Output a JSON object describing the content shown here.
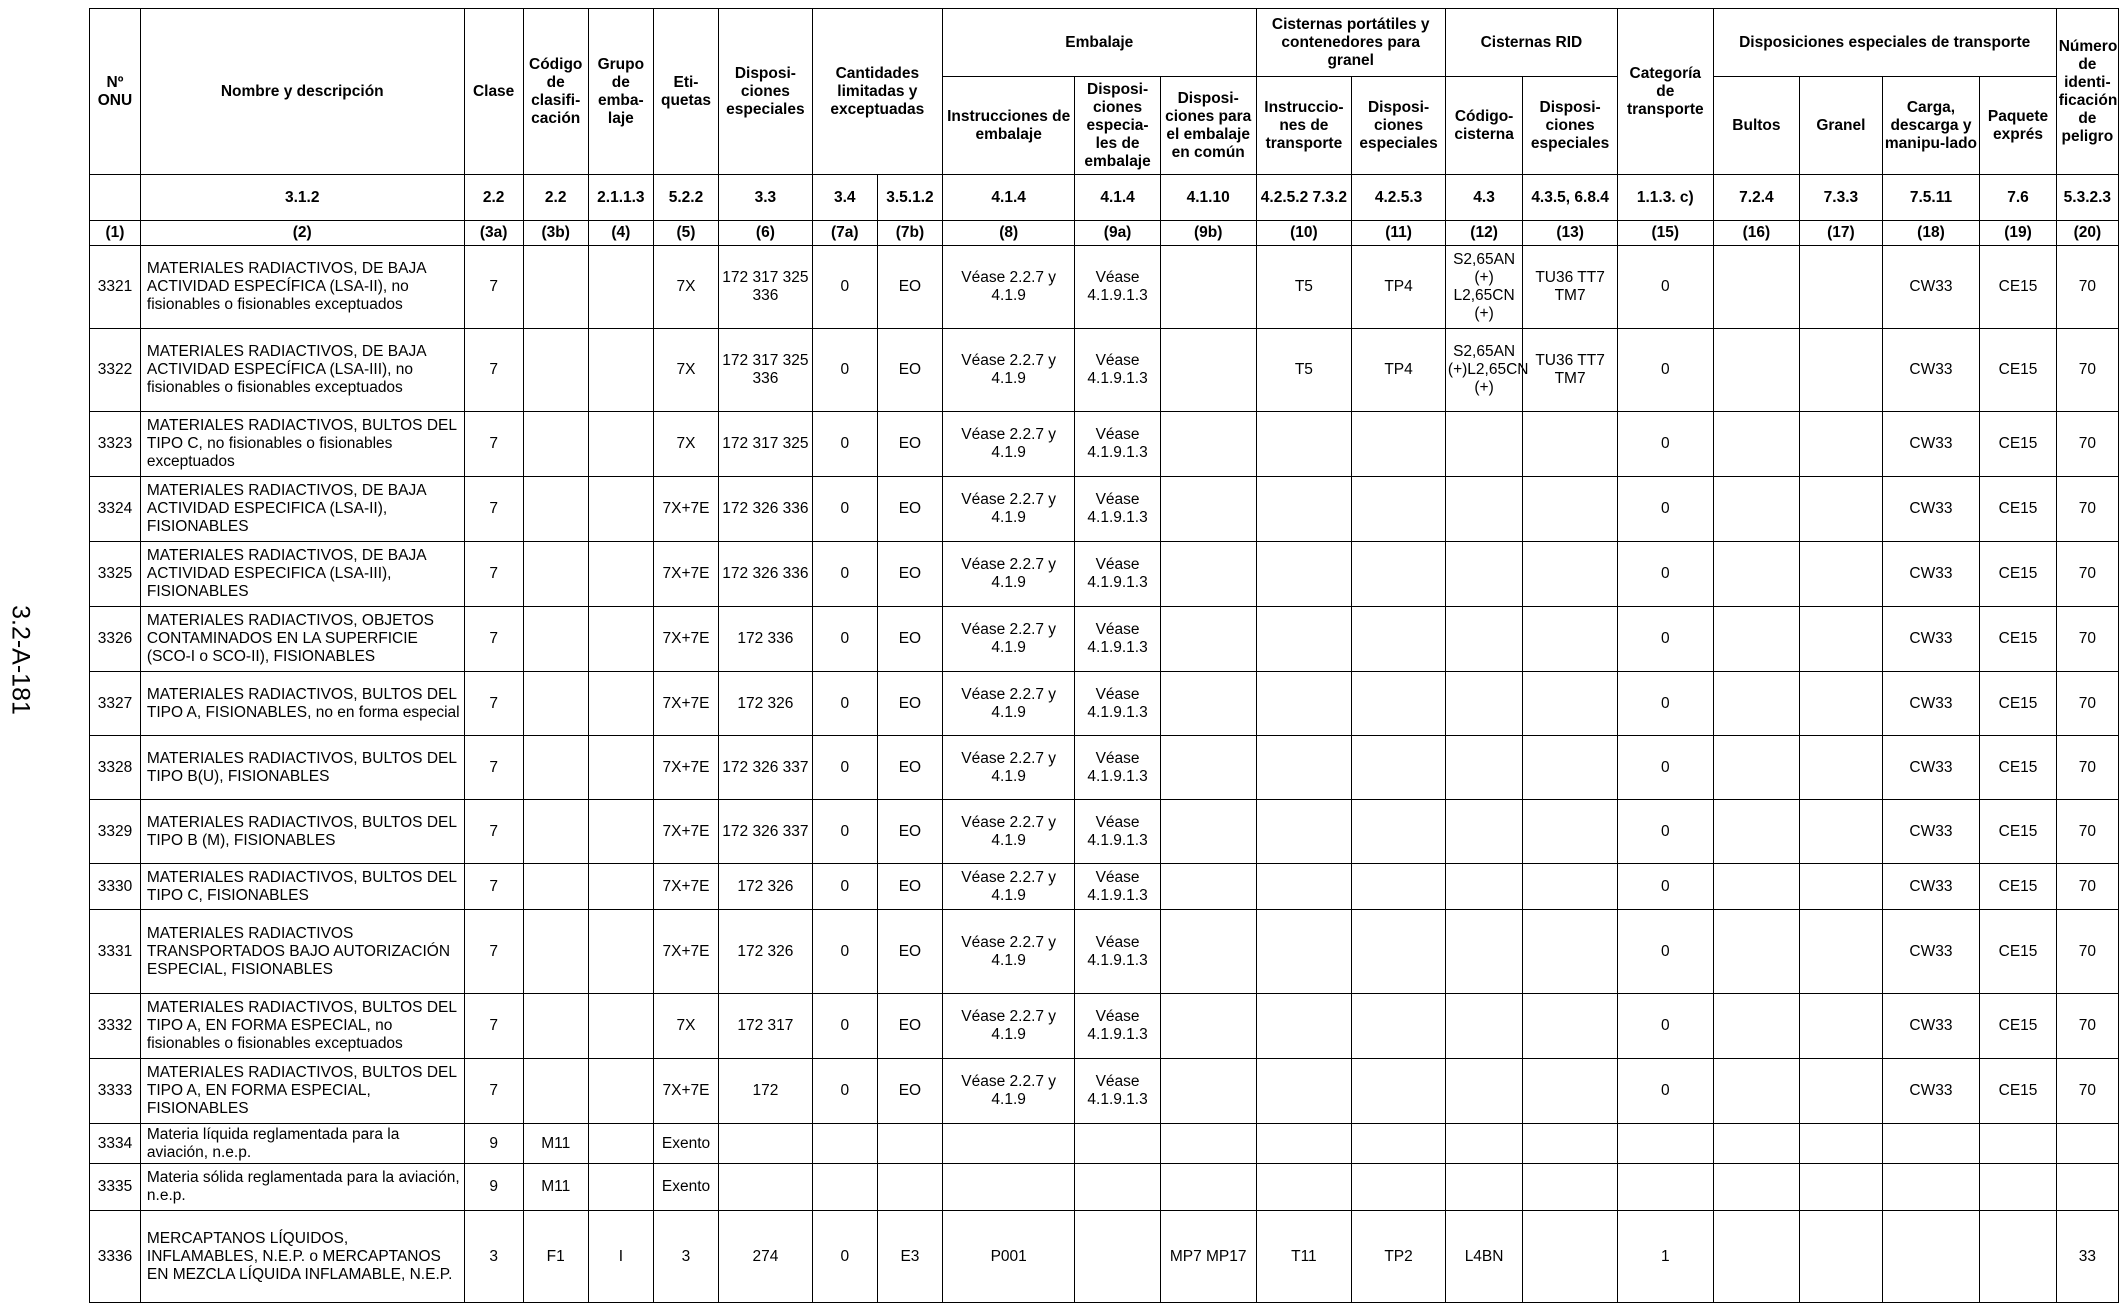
{
  "side_label": "3.2-A-181",
  "groups": {
    "embalaje": "Embalaje",
    "cisternas_portatiles": "Cisternas portátiles y contenedores para granel",
    "cisternas_rid": "Cisternas RID",
    "cantidades": "Cantidades limitadas y exceptuadas",
    "disp_transporte": "Disposiciones especiales de transporte"
  },
  "headers": {
    "onu": "Nº ONU",
    "nombre": "Nombre y descripción",
    "clase": "Clase",
    "codigo": "Código de clasifi-cación",
    "grupo": "Grupo de emba-laje",
    "etiquetas": "Eti-quetas",
    "disp_esp": "Disposi-ciones especiales",
    "instr_emb": "Instrucciones de embalaje",
    "disp_emb": "Disposi-ciones especia-les de embalaje",
    "disp_comun": "Disposi-ciones para el embalaje en común",
    "instr_transp": "Instruccio-nes de transporte",
    "disp_cist": "Disposi-ciones especiales",
    "cod_cisterna": "Código-cisterna",
    "disp_rid": "Disposi-ciones especiales",
    "categoria": "Categoría de transporte",
    "bultos": "Bultos",
    "granel": "Granel",
    "carga": "Carga, descarga y manipu-lado",
    "paquete": "Paquete exprés",
    "numero": "Número de identi-ficación de peligro"
  },
  "references": [
    "",
    "3.1.2",
    "2.2",
    "2.2",
    "2.1.1.3",
    "5.2.2",
    "3.3",
    "3.4",
    "3.5.1.2",
    "4.1.4",
    "4.1.4",
    "4.1.10",
    "4.2.5.2 7.3.2",
    "4.2.5.3",
    "4.3",
    "4.3.5, 6.8.4",
    "1.1.3. c)",
    "7.2.4",
    "7.3.3",
    "7.5.11",
    "7.6",
    "5.3.2.3"
  ],
  "column_numbers": [
    "(1)",
    "(2)",
    "(3a)",
    "(3b)",
    "(4)",
    "(5)",
    "(6)",
    "(7a)",
    "(7b)",
    "(8)",
    "(9a)",
    "(9b)",
    "(10)",
    "(11)",
    "(12)",
    "(13)",
    "(15)",
    "(16)",
    "(17)",
    "(18)",
    "(19)",
    "(20)"
  ],
  "rows": [
    {
      "onu": "3321",
      "nombre": "MATERIALES RADIACTIVOS, DE BAJA ACTIVIDAD ESPECÍFICA (LSA-II), no fisionables o fisionables exceptuados",
      "clase": "7",
      "codigo": "",
      "grupo": "",
      "etiquetas": "7X",
      "disp_esp": "172 317 325 336",
      "cant_lim": "0",
      "cant_exc": "EO",
      "instr_emb": "Véase 2.2.7 y 4.1.9",
      "disp_emb": "Véase 4.1.9.1.3",
      "disp_comun": "",
      "instr_transp": "T5",
      "disp_cist": "TP4",
      "cod_cisterna": "S2,65AN (+) L2,65CN (+)",
      "disp_rid": "TU36 TT7 TM7",
      "categoria": "0",
      "bultos": "",
      "granel": "",
      "carga": "CW33",
      "paquete": "CE15",
      "numero": "70"
    },
    {
      "onu": "3322",
      "nombre": "MATERIALES RADIACTIVOS, DE BAJA ACTIVIDAD ESPECÍFICA (LSA-III), no fisionables o fisionables exceptuados",
      "clase": "7",
      "codigo": "",
      "grupo": "",
      "etiquetas": "7X",
      "disp_esp": "172 317 325 336",
      "cant_lim": "0",
      "cant_exc": "EO",
      "instr_emb": "Véase 2.2.7 y 4.1.9",
      "disp_emb": "Véase 4.1.9.1.3",
      "disp_comun": "",
      "instr_transp": "T5",
      "disp_cist": "TP4",
      "cod_cisterna": "S2,65AN (+)L2,65CN (+)",
      "disp_rid": "TU36 TT7 TM7",
      "categoria": "0",
      "bultos": "",
      "granel": "",
      "carga": "CW33",
      "paquete": "CE15",
      "numero": "70"
    },
    {
      "onu": "3323",
      "nombre": "MATERIALES RADIACTIVOS, BULTOS DEL TIPO C, no fisionables o fisionables exceptuados",
      "clase": "7",
      "codigo": "",
      "grupo": "",
      "etiquetas": "7X",
      "disp_esp": "172 317 325",
      "cant_lim": "0",
      "cant_exc": "EO",
      "instr_emb": "Véase 2.2.7 y 4.1.9",
      "disp_emb": "Véase 4.1.9.1.3",
      "disp_comun": "",
      "instr_transp": "",
      "disp_cist": "",
      "cod_cisterna": "",
      "disp_rid": "",
      "categoria": "0",
      "bultos": "",
      "granel": "",
      "carga": "CW33",
      "paquete": "CE15",
      "numero": "70"
    },
    {
      "onu": "3324",
      "nombre": "MATERIALES RADIACTIVOS, DE BAJA ACTIVIDAD ESPECIFICA (LSA-II), FISIONABLES",
      "clase": "7",
      "codigo": "",
      "grupo": "",
      "etiquetas": "7X+7E",
      "disp_esp": "172 326 336",
      "cant_lim": "0",
      "cant_exc": "EO",
      "instr_emb": "Véase 2.2.7 y 4.1.9",
      "disp_emb": "Véase 4.1.9.1.3",
      "disp_comun": "",
      "instr_transp": "",
      "disp_cist": "",
      "cod_cisterna": "",
      "disp_rid": "",
      "categoria": "0",
      "bultos": "",
      "granel": "",
      "carga": "CW33",
      "paquete": "CE15",
      "numero": "70"
    },
    {
      "onu": "3325",
      "nombre": "MATERIALES RADIACTIVOS, DE BAJA ACTIVIDAD ESPECIFICA (LSA-III), FISIONABLES",
      "clase": "7",
      "codigo": "",
      "grupo": "",
      "etiquetas": "7X+7E",
      "disp_esp": "172 326 336",
      "cant_lim": "0",
      "cant_exc": "EO",
      "instr_emb": "Véase 2.2.7 y 4.1.9",
      "disp_emb": "Véase 4.1.9.1.3",
      "disp_comun": "",
      "instr_transp": "",
      "disp_cist": "",
      "cod_cisterna": "",
      "disp_rid": "",
      "categoria": "0",
      "bultos": "",
      "granel": "",
      "carga": "CW33",
      "paquete": "CE15",
      "numero": "70"
    },
    {
      "onu": "3326",
      "nombre": "MATERIALES RADIACTIVOS, OBJETOS CONTAMINADOS EN LA SUPERFICIE (SCO-I o SCO-II), FISIONABLES",
      "clase": "7",
      "codigo": "",
      "grupo": "",
      "etiquetas": "7X+7E",
      "disp_esp": "172 336",
      "cant_lim": "0",
      "cant_exc": "EO",
      "instr_emb": "Véase 2.2.7 y 4.1.9",
      "disp_emb": "Véase 4.1.9.1.3",
      "disp_comun": "",
      "instr_transp": "",
      "disp_cist": "",
      "cod_cisterna": "",
      "disp_rid": "",
      "categoria": "0",
      "bultos": "",
      "granel": "",
      "carga": "CW33",
      "paquete": "CE15",
      "numero": "70"
    },
    {
      "onu": "3327",
      "nombre": "MATERIALES RADIACTIVOS, BULTOS DEL TIPO A, FISIONABLES,  no en forma especial",
      "clase": "7",
      "codigo": "",
      "grupo": "",
      "etiquetas": "7X+7E",
      "disp_esp": "172 326",
      "cant_lim": "0",
      "cant_exc": "EO",
      "instr_emb": "Véase 2.2.7 y 4.1.9",
      "disp_emb": "Véase 4.1.9.1.3",
      "disp_comun": "",
      "instr_transp": "",
      "disp_cist": "",
      "cod_cisterna": "",
      "disp_rid": "",
      "categoria": "0",
      "bultos": "",
      "granel": "",
      "carga": "CW33",
      "paquete": "CE15",
      "numero": "70"
    },
    {
      "onu": "3328",
      "nombre": "MATERIALES RADIACTIVOS, BULTOS DEL TIPO B(U), FISIONABLES",
      "clase": "7",
      "codigo": "",
      "grupo": "",
      "etiquetas": "7X+7E",
      "disp_esp": "172 326 337",
      "cant_lim": "0",
      "cant_exc": "EO",
      "instr_emb": "Véase 2.2.7 y 4.1.9",
      "disp_emb": "Véase 4.1.9.1.3",
      "disp_comun": "",
      "instr_transp": "",
      "disp_cist": "",
      "cod_cisterna": "",
      "disp_rid": "",
      "categoria": "0",
      "bultos": "",
      "granel": "",
      "carga": "CW33",
      "paquete": "CE15",
      "numero": "70"
    },
    {
      "onu": "3329",
      "nombre": "MATERIALES RADIACTIVOS, BULTOS DEL TIPO B (M), FISIONABLES",
      "clase": "7",
      "codigo": "",
      "grupo": "",
      "etiquetas": "7X+7E",
      "disp_esp": "172 326 337",
      "cant_lim": "0",
      "cant_exc": "EO",
      "instr_emb": "Véase 2.2.7 y 4.1.9",
      "disp_emb": "Véase 4.1.9.1.3",
      "disp_comun": "",
      "instr_transp": "",
      "disp_cist": "",
      "cod_cisterna": "",
      "disp_rid": "",
      "categoria": "0",
      "bultos": "",
      "granel": "",
      "carga": "CW33",
      "paquete": "CE15",
      "numero": "70"
    },
    {
      "onu": "3330",
      "nombre": "MATERIALES RADIACTIVOS, BULTOS DEL TIPO C, FISIONABLES",
      "clase": "7",
      "codigo": "",
      "grupo": "",
      "etiquetas": "7X+7E",
      "disp_esp": "172 326",
      "cant_lim": "0",
      "cant_exc": "EO",
      "instr_emb": "Véase 2.2.7 y 4.1.9",
      "disp_emb": "Véase 4.1.9.1.3",
      "disp_comun": "",
      "instr_transp": "",
      "disp_cist": "",
      "cod_cisterna": "",
      "disp_rid": "",
      "categoria": "0",
      "bultos": "",
      "granel": "",
      "carga": "CW33",
      "paquete": "CE15",
      "numero": "70"
    },
    {
      "onu": "3331",
      "nombre": "MATERIALES RADIACTIVOS TRANSPORTADOS BAJO AUTORIZACIÓN ESPECIAL, FISIONABLES",
      "clase": "7",
      "codigo": "",
      "grupo": "",
      "etiquetas": "7X+7E",
      "disp_esp": "172 326",
      "cant_lim": "0",
      "cant_exc": "EO",
      "instr_emb": "Véase 2.2.7 y 4.1.9",
      "disp_emb": "Véase 4.1.9.1.3",
      "disp_comun": "",
      "instr_transp": "",
      "disp_cist": "",
      "cod_cisterna": "",
      "disp_rid": "",
      "categoria": "0",
      "bultos": "",
      "granel": "",
      "carga": "CW33",
      "paquete": "CE15",
      "numero": "70"
    },
    {
      "onu": "3332",
      "nombre": "MATERIALES RADIACTIVOS, BULTOS DEL TIPO A, EN FORMA ESPECIAL, no fisionables o fisionables exceptuados",
      "clase": "7",
      "codigo": "",
      "grupo": "",
      "etiquetas": "7X",
      "disp_esp": "172 317",
      "cant_lim": "0",
      "cant_exc": "EO",
      "instr_emb": "Véase 2.2.7 y 4.1.9",
      "disp_emb": "Véase 4.1.9.1.3",
      "disp_comun": "",
      "instr_transp": "",
      "disp_cist": "",
      "cod_cisterna": "",
      "disp_rid": "",
      "categoria": "0",
      "bultos": "",
      "granel": "",
      "carga": "CW33",
      "paquete": "CE15",
      "numero": "70"
    },
    {
      "onu": "3333",
      "nombre": "MATERIALES RADIACTIVOS, BULTOS DEL TIPO A, EN FORMA ESPECIAL, FISIONABLES",
      "clase": "7",
      "codigo": "",
      "grupo": "",
      "etiquetas": "7X+7E",
      "disp_esp": "172",
      "cant_lim": "0",
      "cant_exc": "EO",
      "instr_emb": "Véase 2.2.7 y 4.1.9",
      "disp_emb": "Véase 4.1.9.1.3",
      "disp_comun": "",
      "instr_transp": "",
      "disp_cist": "",
      "cod_cisterna": "",
      "disp_rid": "",
      "categoria": "0",
      "bultos": "",
      "granel": "",
      "carga": "CW33",
      "paquete": "CE15",
      "numero": "70"
    },
    {
      "onu": "3334",
      "nombre": "Materia líquida reglamentada para la aviación, n.e.p.",
      "clase": "9",
      "codigo": "M11",
      "grupo": "",
      "etiquetas": "Exento",
      "disp_esp": "",
      "cant_lim": "",
      "cant_exc": "",
      "instr_emb": "",
      "disp_emb": "",
      "disp_comun": "",
      "instr_transp": "",
      "disp_cist": "",
      "cod_cisterna": "",
      "disp_rid": "",
      "categoria": "",
      "bultos": "",
      "granel": "",
      "carga": "",
      "paquete": "",
      "numero": ""
    },
    {
      "onu": "3335",
      "nombre": "Materia sólida reglamentada para la aviación, n.e.p.",
      "clase": "9",
      "codigo": "M11",
      "grupo": "",
      "etiquetas": "Exento",
      "disp_esp": "",
      "cant_lim": "",
      "cant_exc": "",
      "instr_emb": "",
      "disp_emb": "",
      "disp_comun": "",
      "instr_transp": "",
      "disp_cist": "",
      "cod_cisterna": "",
      "disp_rid": "",
      "categoria": "",
      "bultos": "",
      "granel": "",
      "carga": "",
      "paquete": "",
      "numero": ""
    },
    {
      "onu": "3336",
      "nombre": "MERCAPTANOS LÍQUIDOS, INFLAMABLES, N.E.P. o MERCAPTANOS EN MEZCLA LÍQUIDA INFLAMABLE, N.E.P.",
      "clase": "3",
      "codigo": "F1",
      "grupo": "I",
      "etiquetas": "3",
      "disp_esp": "274",
      "cant_lim": "0",
      "cant_exc": "E3",
      "instr_emb": "P001",
      "disp_emb": "",
      "disp_comun": "MP7 MP17",
      "instr_transp": "T11",
      "disp_cist": "TP2",
      "cod_cisterna": "L4BN",
      "disp_rid": "",
      "categoria": "1",
      "bultos": "",
      "granel": "",
      "carga": "",
      "paquete": "",
      "numero": "33"
    }
  ]
}
